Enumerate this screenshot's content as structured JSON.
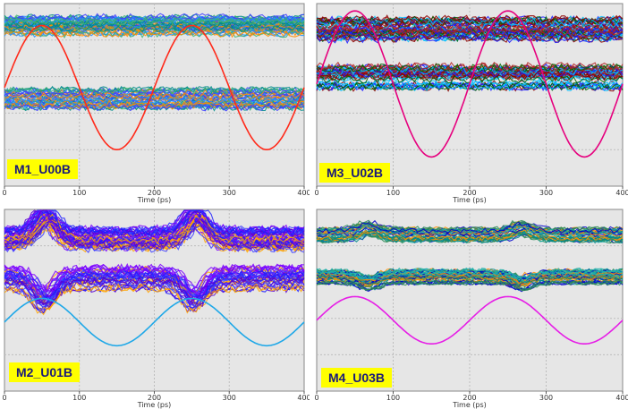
{
  "chart_data": [
    {
      "type": "line",
      "name_label": "M1_U00B",
      "xlabel": "Time (ps)",
      "xlim": [
        0,
        400
      ],
      "x_ticks": [
        0,
        100,
        200,
        300,
        400
      ],
      "eye_colors": [
        "#008b8b",
        "#1e90ff",
        "#ff8c00",
        "#3cb371",
        "#4040ff"
      ],
      "clock_color": "#ff2a1a",
      "clock_period_ps": 200,
      "clock_phase_ps": 50,
      "clock_amplitude": 0.34,
      "clock_offset": 0.46,
      "eye_high": 0.12,
      "eye_low": 0.52,
      "eye_thickness": 0.1,
      "eye_crossings_ps": [
        65,
        265
      ]
    },
    {
      "type": "line",
      "name_label": "M3_U02B",
      "xlabel": "Time (ps)",
      "xlim": [
        0,
        400
      ],
      "x_ticks": [
        0,
        100,
        200,
        300,
        400
      ],
      "eye_colors": [
        "#8b0000",
        "#00bfff",
        "#1a1aff",
        "#b22222",
        "#006400"
      ],
      "clock_color": "#e6007e",
      "clock_period_ps": 200,
      "clock_phase_ps": 50,
      "clock_amplitude": 0.4,
      "clock_offset": 0.44,
      "eye_high": 0.14,
      "eye_low": 0.4,
      "eye_thickness": 0.12,
      "eye_crossings_ps": [
        85,
        285
      ]
    },
    {
      "type": "line",
      "name_label": "M2_U01B",
      "xlabel": "Time (ps)",
      "xlim": [
        0,
        400
      ],
      "x_ticks": [
        0,
        100,
        200,
        300,
        400
      ],
      "eye_colors": [
        "#7b00ff",
        "#3d3dff",
        "#ffa500",
        "#5a00d0",
        "#1e1eff"
      ],
      "clock_color": "#1fa8e8",
      "clock_period_ps": 200,
      "clock_phase_ps": 50,
      "clock_amplitude": 0.13,
      "clock_offset": 0.62,
      "eye_high": 0.16,
      "eye_low": 0.38,
      "eye_thickness": 0.12,
      "eye_crossings_ps": [
        45,
        265
      ]
    },
    {
      "type": "line",
      "name_label": "M4_U03B",
      "xlabel": "Time (ps)",
      "xlim": [
        0,
        400
      ],
      "x_ticks": [
        0,
        100,
        200,
        300,
        400
      ],
      "eye_colors": [
        "#008b8b",
        "#ff8c00",
        "#0000cd",
        "#2e8b57",
        "#20b2aa"
      ],
      "clock_color": "#e61ee6",
      "clock_period_ps": 200,
      "clock_phase_ps": 50,
      "clock_amplitude": 0.13,
      "clock_offset": 0.61,
      "eye_high": 0.14,
      "eye_low": 0.37,
      "eye_thickness": 0.07,
      "eye_crossings_ps": [
        65,
        270
      ]
    }
  ]
}
